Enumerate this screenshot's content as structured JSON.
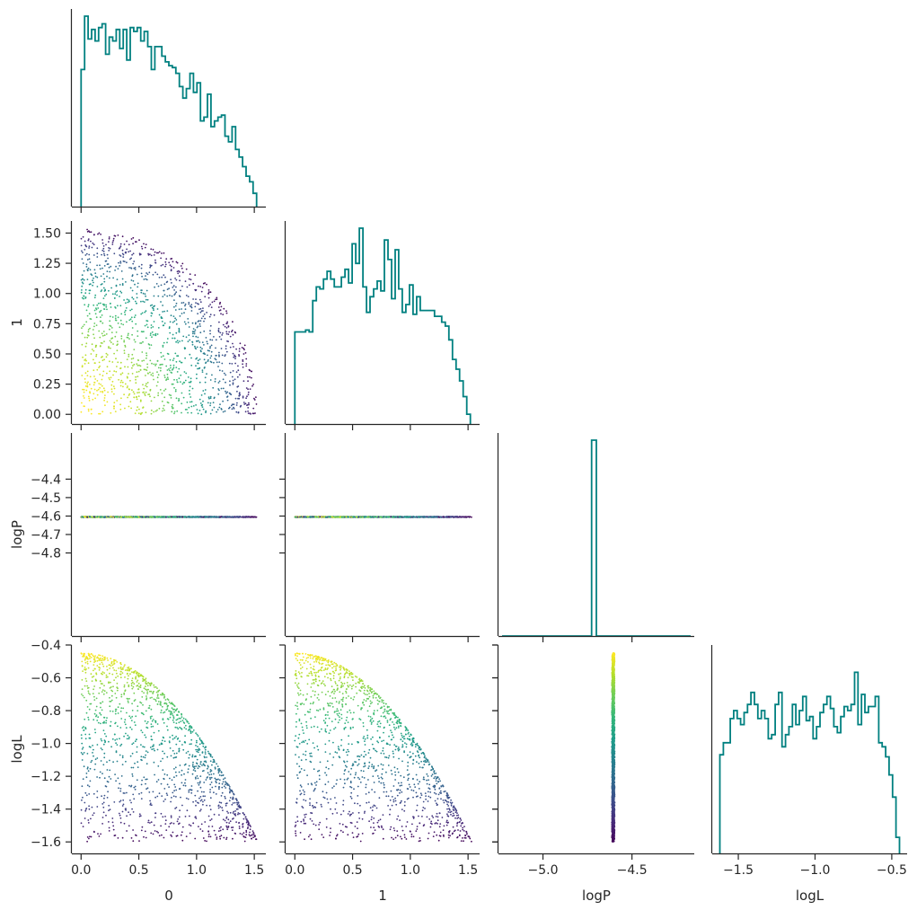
{
  "chart_data": {
    "type": "corner-plot",
    "variables": [
      "0",
      "1",
      "logP",
      "logL"
    ],
    "variable_labels": {
      "x": [
        "0",
        "1",
        "logP",
        "logL"
      ],
      "y": [
        "",
        "1",
        "logP",
        "logL"
      ]
    },
    "ranges": {
      "0": [
        -0.08,
        1.6
      ],
      "1": [
        -0.08,
        1.6
      ],
      "logP": [
        -5.25,
        -4.15
      ],
      "logL": [
        -1.67,
        -0.4
      ]
    },
    "ticks": {
      "0": [
        "0.0",
        "0.5",
        "1.0",
        "1.5"
      ],
      "1_x": [
        "0.0",
        "0.5",
        "1.0",
        "1.5"
      ],
      "1_y": [
        "0.00",
        "0.25",
        "0.50",
        "0.75",
        "1.00",
        "1.25",
        "1.50"
      ],
      "logP_x": [
        "−5.0",
        "−4.5"
      ],
      "logP_y": [
        "−4.4",
        "−4.5",
        "−4.6",
        "−4.7",
        "−4.8"
      ],
      "logL_x": [
        "−1.5",
        "−1.0",
        "−0.5"
      ],
      "logL_y": [
        "−0.4",
        "−0.6",
        "−0.8",
        "−1.0",
        "−1.2",
        "−1.4",
        "−1.6"
      ]
    },
    "logP_value": -4.605,
    "n_points": 1400,
    "point_colormap": "viridis (colored by logL, yellow = high)",
    "histogram_color": "#008080",
    "histograms": {
      "0": [
        0.72,
        1.0,
        0.88,
        0.93,
        0.87,
        0.94,
        0.96,
        0.8,
        0.89,
        0.87,
        0.93,
        0.83,
        0.93,
        0.77,
        0.94,
        0.92,
        0.94,
        0.87,
        0.92,
        0.84,
        0.72,
        0.84,
        0.84,
        0.79,
        0.76,
        0.74,
        0.73,
        0.7,
        0.63,
        0.57,
        0.62,
        0.7,
        0.6,
        0.65,
        0.45,
        0.47,
        0.59,
        0.42,
        0.45,
        0.47,
        0.48,
        0.37,
        0.34,
        0.42,
        0.3,
        0.26,
        0.21,
        0.16,
        0.13,
        0.07
      ],
      "1": [
        0.47,
        0.47,
        0.47,
        0.48,
        0.47,
        0.63,
        0.7,
        0.69,
        0.74,
        0.78,
        0.74,
        0.7,
        0.7,
        0.75,
        0.79,
        0.72,
        0.92,
        0.82,
        1.0,
        0.7,
        0.57,
        0.65,
        0.69,
        0.73,
        0.68,
        0.94,
        0.84,
        0.64,
        0.89,
        0.69,
        0.57,
        0.61,
        0.71,
        0.56,
        0.65,
        0.58,
        0.58,
        0.58,
        0.58,
        0.55,
        0.55,
        0.52,
        0.5,
        0.43,
        0.33,
        0.28,
        0.22,
        0.14,
        0.05
      ],
      "logP": [
        0.0,
        0.0,
        0.0,
        0.0,
        0.0,
        0.0,
        0.0,
        0.0,
        0.0,
        0.0,
        0.0,
        0.0,
        0.0,
        0.0,
        0.0,
        0.0,
        0.0,
        0.0,
        0.0,
        1.0,
        0.0,
        0.0,
        0.0,
        0.0,
        0.0,
        0.0,
        0.0,
        0.0,
        0.0,
        0.0,
        0.0,
        0.0,
        0.0,
        0.0,
        0.0,
        0.0,
        0.0,
        0.0,
        0.0,
        0.0
      ],
      "logL": [
        0.49,
        0.55,
        0.55,
        0.67,
        0.71,
        0.67,
        0.64,
        0.7,
        0.74,
        0.8,
        0.74,
        0.67,
        0.71,
        0.67,
        0.57,
        0.59,
        0.74,
        0.8,
        0.53,
        0.59,
        0.63,
        0.74,
        0.64,
        0.71,
        0.78,
        0.66,
        0.68,
        0.57,
        0.63,
        0.7,
        0.74,
        0.78,
        0.72,
        0.63,
        0.6,
        0.68,
        0.73,
        0.71,
        0.74,
        0.9,
        0.64,
        0.79,
        0.7,
        0.73,
        0.73,
        0.78,
        0.55,
        0.53,
        0.48,
        0.39,
        0.28,
        0.08
      ]
    },
    "grid": false,
    "legend": "none"
  }
}
